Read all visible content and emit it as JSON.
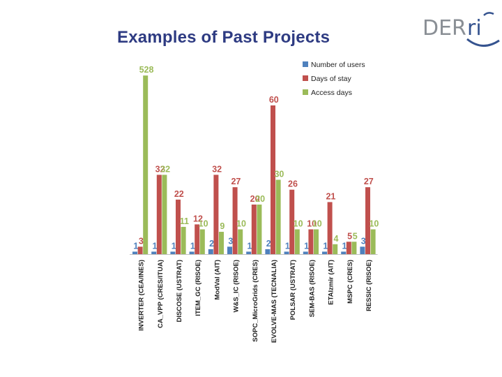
{
  "slide": {
    "title": "Examples of Past Projects",
    "logo_text_main": "DER",
    "logo_text_accent": "ri"
  },
  "colors": {
    "title": "#2e3b82",
    "logo_grey": "#8a8f95",
    "logo_blue": "#35538f",
    "users": "#4f81bd",
    "days": "#c0504d",
    "access": "#9bbb59"
  },
  "chart_data": {
    "type": "bar",
    "title": "",
    "xlabel": "",
    "ylabel": "",
    "scale": "non-linear",
    "grid": false,
    "legend_position": "top-right",
    "categories": [
      "INVERTER (CEA/INES)",
      "CA_VPP (CRES/ITUA)",
      "DISCOSE (USTRAT)",
      "ITEM_GC (RISOE)",
      "ModVal (AIT)",
      "W&S_IC (RISOE)",
      "SOPC_MicroGrids (CRES)",
      "EVOLVE-MAS (TECNALIA)",
      "POLSAR (USTRAT)",
      "SEM-BAS (RISOE)",
      "ETAIzmir (AIT)",
      "MSPC (CRES)",
      "RESSIC (RISOE)"
    ],
    "series": [
      {
        "name": "Number of users",
        "values": [
          1,
          1,
          1,
          1,
          2,
          3,
          1,
          2,
          1,
          1,
          1,
          1,
          3
        ]
      },
      {
        "name": "Days of stay",
        "values": [
          3,
          32,
          22,
          12,
          32,
          27,
          20,
          60,
          26,
          10,
          21,
          5,
          27
        ]
      },
      {
        "name": "Access days",
        "values": [
          528,
          32,
          11,
          10,
          9,
          10,
          20,
          30,
          10,
          10,
          4,
          5,
          10
        ]
      }
    ]
  }
}
